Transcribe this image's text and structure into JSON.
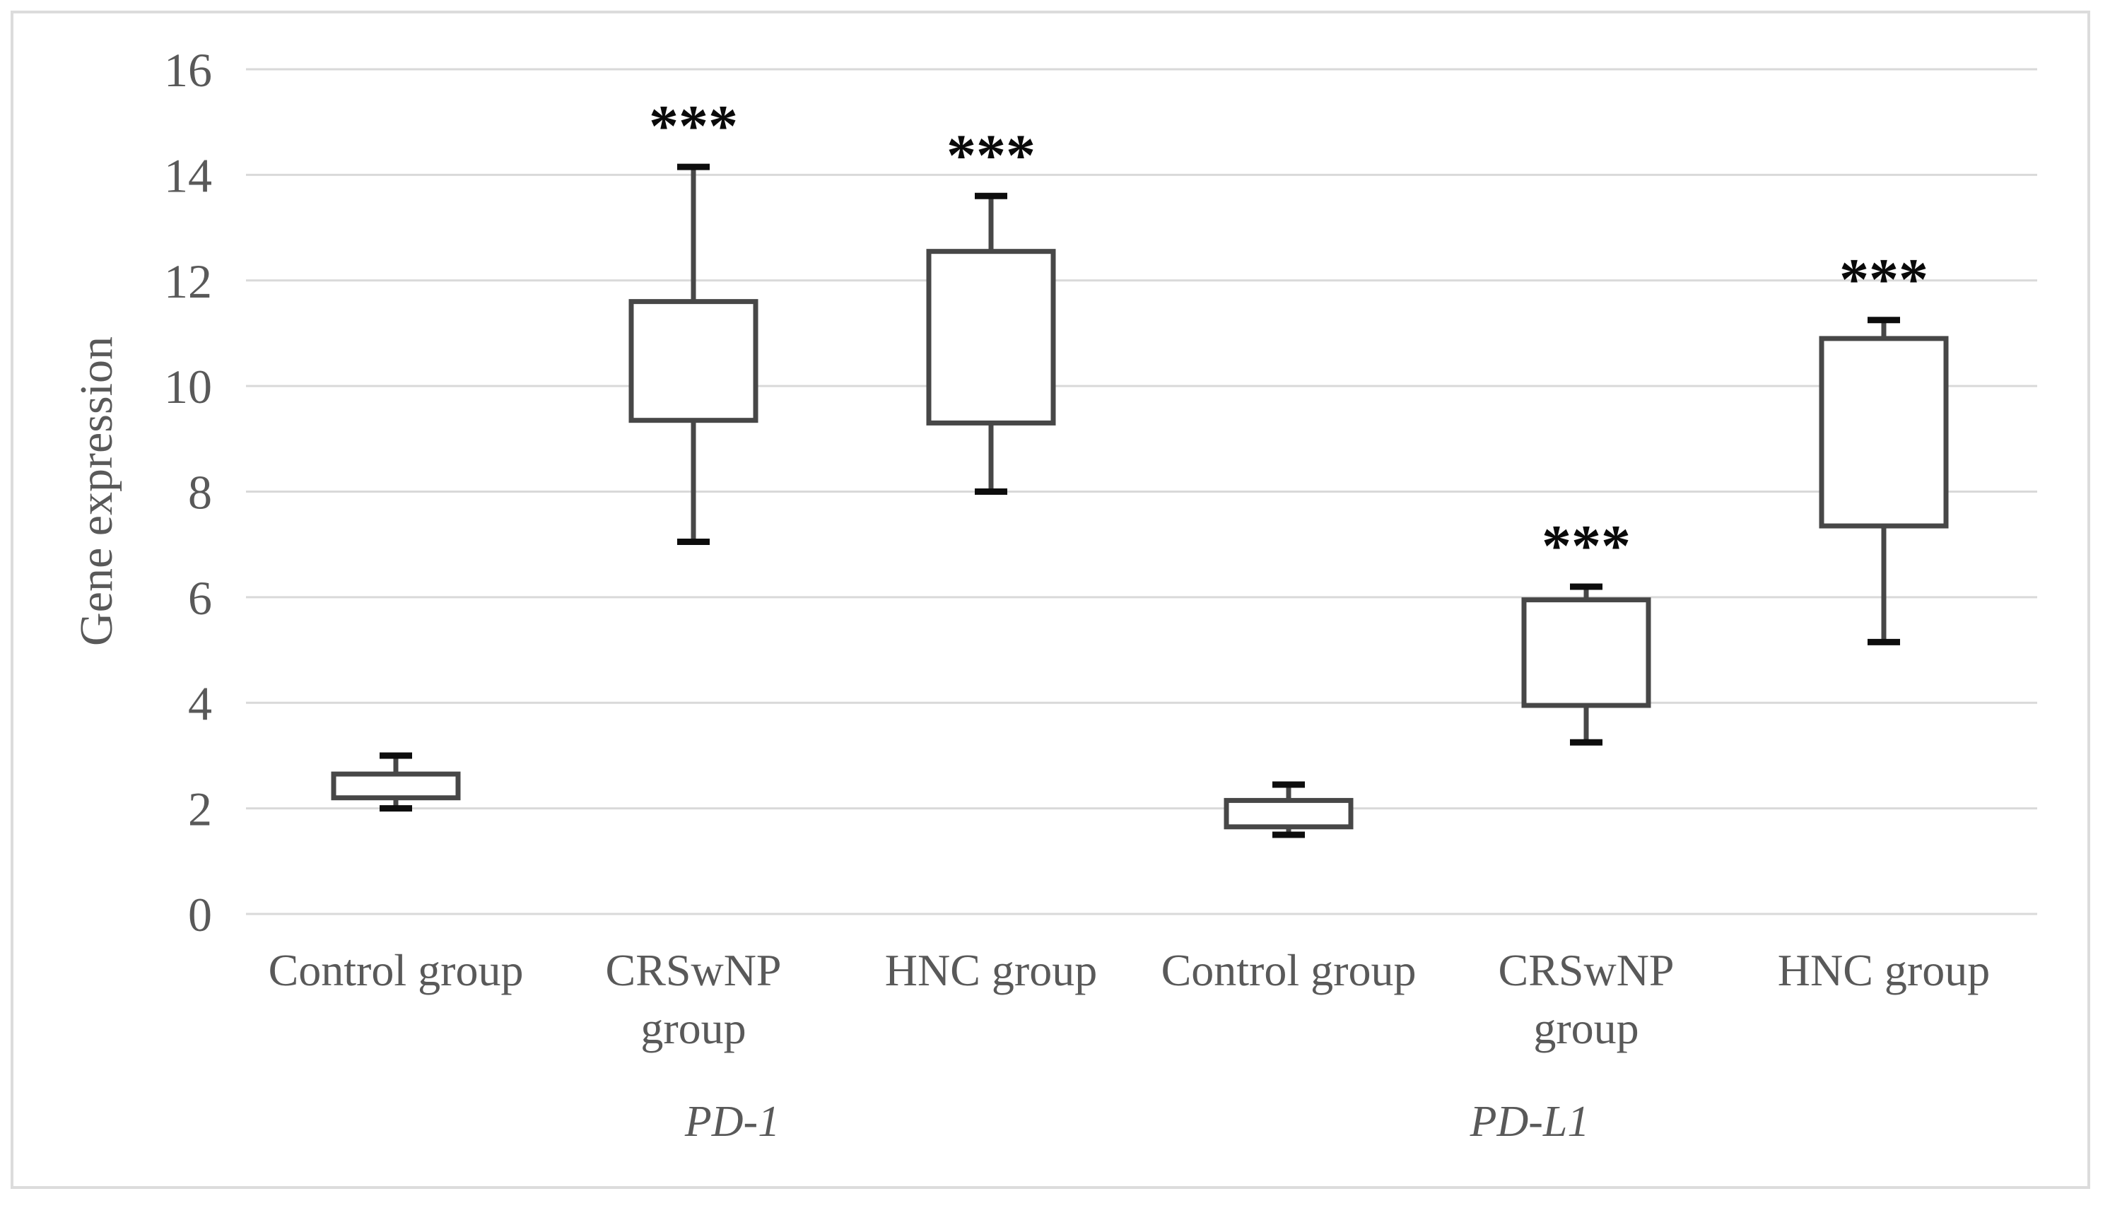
{
  "chart_data": {
    "type": "box",
    "title": "",
    "xlabel": "",
    "ylabel": "Gene expression",
    "ylim": [
      0,
      16
    ],
    "ytick_interval": 2,
    "grid": "horizontal",
    "legend": "none",
    "significance_marker": "***",
    "clusters": [
      {
        "gene": "PD-1",
        "boxes": [
          {
            "label": "Control group",
            "label_lines": [
              "Control group"
            ],
            "whisker_low": 2.0,
            "q1": 2.2,
            "q3": 2.65,
            "whisker_high": 3.0,
            "median_shown": false,
            "significance": ""
          },
          {
            "label": "CRSwNP group",
            "label_lines": [
              "CRSwNP",
              "group"
            ],
            "whisker_low": 7.05,
            "q1": 9.35,
            "q3": 11.6,
            "whisker_high": 14.15,
            "median_shown": false,
            "significance": "***"
          },
          {
            "label": "HNC group",
            "label_lines": [
              "HNC group"
            ],
            "whisker_low": 8.0,
            "q1": 9.3,
            "q3": 12.55,
            "whisker_high": 13.6,
            "median_shown": false,
            "significance": "***"
          }
        ]
      },
      {
        "gene": "PD-L1",
        "boxes": [
          {
            "label": "Control group",
            "label_lines": [
              "Control group"
            ],
            "whisker_low": 1.5,
            "q1": 1.65,
            "q3": 2.15,
            "whisker_high": 2.45,
            "median_shown": false,
            "significance": ""
          },
          {
            "label": "CRSwNP group",
            "label_lines": [
              "CRSwNP",
              "group"
            ],
            "whisker_low": 3.25,
            "q1": 3.95,
            "q3": 5.95,
            "whisker_high": 6.2,
            "median_shown": false,
            "significance": "***"
          },
          {
            "label": "HNC group",
            "label_lines": [
              "HNC group"
            ],
            "whisker_low": 5.15,
            "q1": 7.35,
            "q3": 10.9,
            "whisker_high": 11.25,
            "median_shown": false,
            "significance": "***"
          }
        ]
      }
    ],
    "colors": {
      "gridline": "#d9d9d9",
      "figure_border": "#dcdcdc",
      "box_stroke": "#474747",
      "box_fill": "#ffffff",
      "whisker_stem": "#474747",
      "whisker_cap": "#0d0d0d",
      "axis_text": "#595959",
      "significance_text": "#0a0a0a",
      "background": "#ffffff"
    }
  }
}
